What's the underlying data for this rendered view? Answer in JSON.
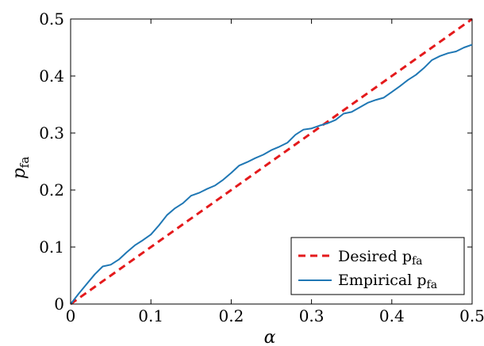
{
  "chart_data": {
    "type": "line",
    "xlabel": "α",
    "ylabel": "p",
    "ylabel_sub": "fa",
    "xlim": [
      0,
      0.5
    ],
    "ylim": [
      0,
      0.5
    ],
    "xticks": [
      0,
      0.1,
      0.2,
      0.3,
      0.4,
      0.5
    ],
    "yticks": [
      0,
      0.1,
      0.2,
      0.3,
      0.4,
      0.5
    ],
    "xtick_labels": [
      "0",
      "0.1",
      "0.2",
      "0.3",
      "0.4",
      "0.5"
    ],
    "ytick_labels": [
      "0",
      "0.1",
      "0.2",
      "0.3",
      "0.4",
      "0.5"
    ],
    "grid": false,
    "legend_position": "bottom-right",
    "series": [
      {
        "name": "Desired p",
        "name_sub": "fa",
        "color": "#e41a1c",
        "style": "dashed",
        "x": [
          0,
          0.5
        ],
        "y": [
          0,
          0.5
        ]
      },
      {
        "name": "Empirical p",
        "name_sub": "fa",
        "color": "#1f77b4",
        "style": "solid",
        "x": [
          0,
          0.01,
          0.02,
          0.03,
          0.04,
          0.05,
          0.06,
          0.07,
          0.08,
          0.09,
          0.1,
          0.11,
          0.12,
          0.13,
          0.14,
          0.15,
          0.16,
          0.17,
          0.18,
          0.19,
          0.2,
          0.21,
          0.22,
          0.23,
          0.24,
          0.25,
          0.26,
          0.27,
          0.28,
          0.29,
          0.3,
          0.31,
          0.32,
          0.33,
          0.34,
          0.35,
          0.36,
          0.37,
          0.38,
          0.39,
          0.4,
          0.41,
          0.42,
          0.43,
          0.44,
          0.45,
          0.46,
          0.47,
          0.48,
          0.49,
          0.5
        ],
        "y": [
          0,
          0.018,
          0.035,
          0.052,
          0.066,
          0.069,
          0.078,
          0.091,
          0.103,
          0.112,
          0.122,
          0.138,
          0.156,
          0.168,
          0.177,
          0.19,
          0.195,
          0.202,
          0.208,
          0.218,
          0.23,
          0.243,
          0.249,
          0.256,
          0.262,
          0.27,
          0.276,
          0.283,
          0.297,
          0.306,
          0.308,
          0.313,
          0.317,
          0.323,
          0.334,
          0.337,
          0.345,
          0.353,
          0.358,
          0.362,
          0.372,
          0.382,
          0.393,
          0.402,
          0.414,
          0.428,
          0.435,
          0.44,
          0.443,
          0.45,
          0.455
        ]
      }
    ]
  }
}
